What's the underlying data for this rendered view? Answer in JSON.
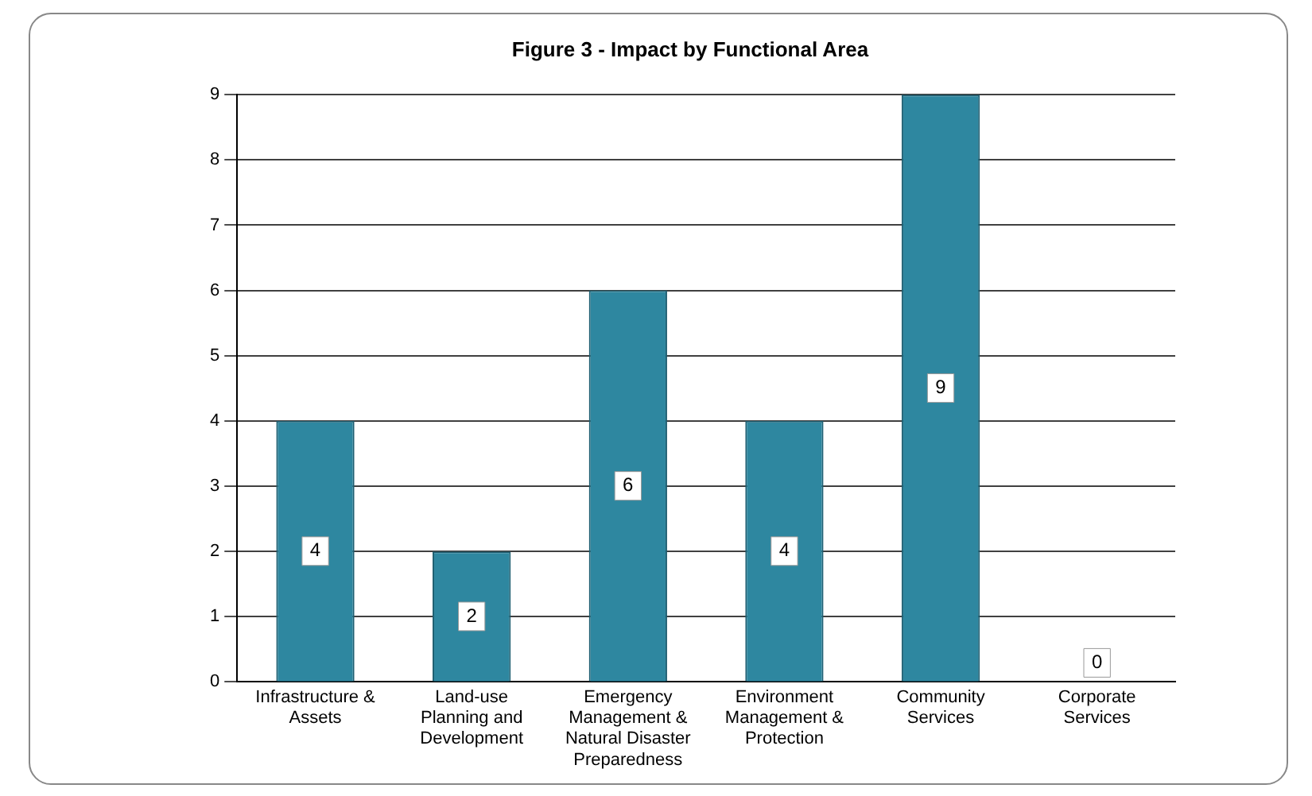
{
  "chart_data": {
    "type": "bar",
    "title": "Figure 3 - Impact by Functional Area",
    "categories": [
      "Infrastructure & Assets",
      "Land-use Planning and Development",
      "Emergency Management & Natural Disaster Preparedness",
      "Environment Management & Protection",
      "Community Services",
      "Corporate Services"
    ],
    "values": [
      4,
      2,
      6,
      4,
      9,
      0
    ],
    "color": "#2e87a0",
    "ylim": [
      0,
      9
    ],
    "yticks": [
      0,
      1,
      2,
      3,
      4,
      5,
      6,
      7,
      8,
      9
    ],
    "grid": "y",
    "data_labels": true,
    "legend": false
  }
}
